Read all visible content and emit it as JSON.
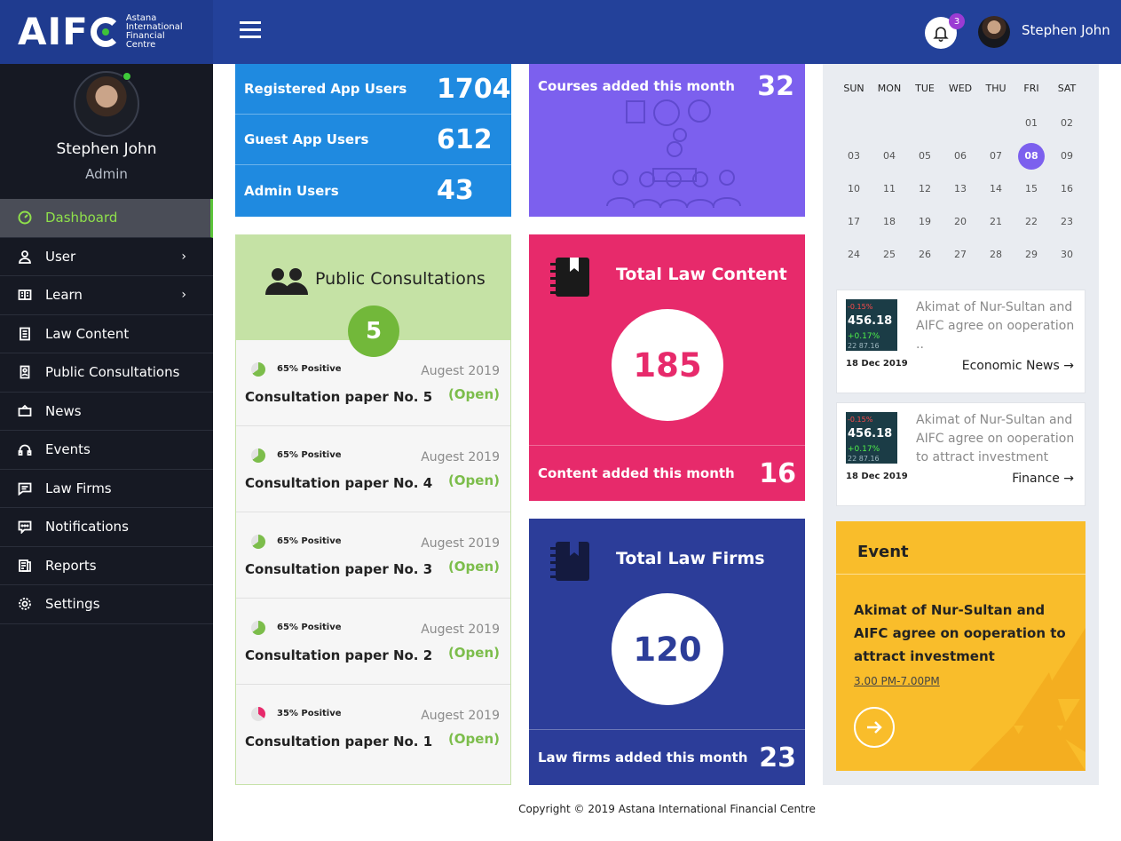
{
  "header": {
    "logo_text": "AIF",
    "logo_subtitle": "Astana International Financial Centre",
    "notification_count": "3",
    "username": "Stephen John"
  },
  "sidebar": {
    "profile_name": "Stephen John",
    "profile_role": "Admin",
    "items": [
      {
        "label": "Dashboard",
        "icon": "dashboard-icon"
      },
      {
        "label": "User",
        "icon": "user-icon"
      },
      {
        "label": "Learn",
        "icon": "book-icon"
      },
      {
        "label": "Law Content",
        "icon": "document-icon"
      },
      {
        "label": "Public Consultations",
        "icon": "consultation-icon"
      },
      {
        "label": "News",
        "icon": "news-icon"
      },
      {
        "label": "Events",
        "icon": "headset-icon"
      },
      {
        "label": "Law Firms",
        "icon": "firm-icon"
      },
      {
        "label": "Notifications",
        "icon": "message-icon"
      },
      {
        "label": "Reports",
        "icon": "report-icon"
      },
      {
        "label": "Settings",
        "icon": "gear-icon"
      }
    ]
  },
  "stats": [
    {
      "label": "Registered App Users",
      "value": "1704"
    },
    {
      "label": "Guest App Users",
      "value": "612"
    },
    {
      "label": "Admin Users",
      "value": "43"
    }
  ],
  "courses": {
    "label": "Courses added this month",
    "value": "32"
  },
  "consultations": {
    "title": "Public Consultations",
    "count": "5",
    "items": [
      {
        "positive": "65% Positive",
        "positive_fraction": 0.65,
        "date": "Augest 2019",
        "title": "Consultation paper No. 5",
        "status": "(Open)"
      },
      {
        "positive": "65% Positive",
        "positive_fraction": 0.65,
        "date": "Augest 2019",
        "title": "Consultation paper No. 4",
        "status": "(Open)"
      },
      {
        "positive": "65% Positive",
        "positive_fraction": 0.65,
        "date": "Augest 2019",
        "title": "Consultation paper No. 3",
        "status": "(Open)"
      },
      {
        "positive": "65% Positive",
        "positive_fraction": 0.65,
        "date": "Augest 2019",
        "title": "Consultation paper No. 2",
        "status": "(Open)"
      },
      {
        "positive": "35% Positive",
        "positive_fraction": 0.35,
        "date": "Augest 2019",
        "title": "Consultation paper No. 1",
        "status": "(Open)"
      }
    ]
  },
  "law_content": {
    "title": "Total Law Content",
    "total": "185",
    "footer_label": "Content added this month",
    "footer_value": "16"
  },
  "law_firms": {
    "title": "Total Law Firms",
    "total": "120",
    "footer_label": "Law firms added this month",
    "footer_value": "23"
  },
  "calendar": {
    "weekdays": [
      "SUN",
      "MON",
      "TUE",
      "WED",
      "THU",
      "FRI",
      "SAT"
    ],
    "days": [
      "",
      "",
      "",
      "",
      "",
      "01",
      "02",
      "03",
      "04",
      "05",
      "06",
      "07",
      "08",
      "09",
      "10",
      "11",
      "12",
      "13",
      "14",
      "15",
      "16",
      "17",
      "18",
      "19",
      "20",
      "21",
      "22",
      "23",
      "24",
      "25",
      "26",
      "27",
      "28",
      "29",
      "30"
    ],
    "selected": "08",
    "accent": "#7c60ee"
  },
  "news": [
    {
      "title": "Akimat of Nur-Sultan and AIFC agree on ooperation ..",
      "date": "18 Dec 2019",
      "category": "Economic News",
      "ticker": [
        "-0.15%",
        "456.18",
        "+0.17%",
        "22 87.16"
      ]
    },
    {
      "title": "Akimat of Nur-Sultan and AIFC agree on ooperation to attract investment",
      "date": "18 Dec 2019",
      "category": "Finance",
      "ticker": [
        "-0.15%",
        "456.18",
        "+0.17%",
        "22 87.16"
      ]
    }
  ],
  "event": {
    "label": "Event",
    "title": "Akimat of Nur-Sultan and AIFC agree on ooperation to attract investment",
    "time": "3.00 PM-7.00PM"
  },
  "footer": {
    "copyright": "Copyright © 2019 Astana International Financial Centre"
  },
  "colors": {
    "primary": "#23419a",
    "green": "#72b83a",
    "pink": "#e72a6b",
    "navy": "#2c3d99",
    "purple": "#7c60ee",
    "yellow": "#f9bd2b",
    "blue": "#1f8ae0"
  }
}
